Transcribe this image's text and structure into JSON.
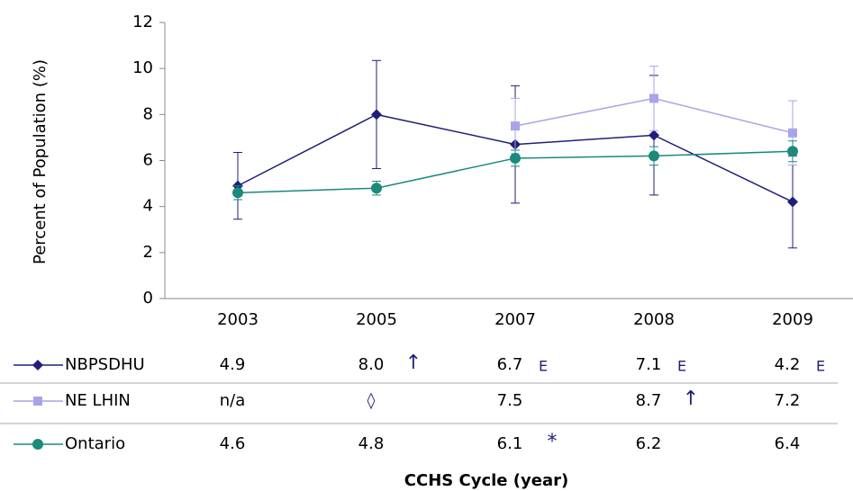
{
  "chart_data": {
    "type": "line",
    "y_label": "Percent of Population (%)",
    "x_label": "CCHS Cycle (year)",
    "categories": [
      "2003",
      "2005",
      "2007",
      "2008",
      "2009"
    ],
    "ylim": [
      0,
      12
    ],
    "yticks": [
      0,
      2,
      4,
      6,
      8,
      10,
      12
    ],
    "series": [
      {
        "name": "NBPSDHU",
        "color": "#1f1f7a",
        "marker": "diamond",
        "values": [
          4.9,
          8.0,
          6.7,
          7.1,
          4.2
        ],
        "errors": [
          1.45,
          2.35,
          2.55,
          2.6,
          2.0
        ],
        "value_labels": [
          "4.9",
          "8.0",
          "6.7",
          "7.1",
          "4.2"
        ],
        "flags": [
          null,
          "↑",
          "E",
          "E",
          "E"
        ]
      },
      {
        "name": "NE LHIN",
        "color": "#a9a3e8",
        "marker": "square",
        "values": [
          null,
          null,
          7.5,
          8.7,
          7.2
        ],
        "errors": [
          null,
          null,
          1.2,
          1.4,
          1.4
        ],
        "value_labels": [
          "n/a",
          "◊",
          "7.5",
          "8.7",
          "7.2"
        ],
        "flags": [
          null,
          null,
          null,
          "↑",
          null
        ]
      },
      {
        "name": "Ontario",
        "color": "#1a8a7a",
        "marker": "circle",
        "values": [
          4.6,
          4.8,
          6.1,
          6.2,
          6.4
        ],
        "errors": [
          0.3,
          0.3,
          0.35,
          0.4,
          0.45
        ],
        "value_labels": [
          "4.6",
          "4.8",
          "6.1",
          "6.2",
          "6.4"
        ],
        "flags": [
          null,
          null,
          "*",
          null,
          null
        ]
      }
    ]
  }
}
